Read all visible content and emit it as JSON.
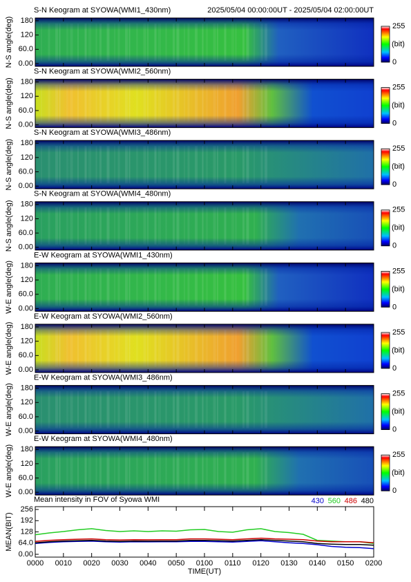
{
  "chart_data": [
    {
      "type": "keogram",
      "title": "S-N Keogram at SYOWA(WMI1_430nm)",
      "time_range": "2025/05/04 00:00:00UT - 2025/05/04 02:00:00UT",
      "ylabel": "N-S angle(deg)",
      "ylim": [
        0,
        180
      ],
      "yticks": [
        180,
        120,
        {
          "value": 60,
          "label": "60.0"
        },
        {
          "value": 0,
          "label": "0.00"
        }
      ],
      "colorbar_ticks": [
        255,
        0
      ],
      "colorbar_label": "(bit)"
    },
    {
      "type": "keogram",
      "title": "S-N Keogram at SYOWA(WMI2_560nm)",
      "ylabel": "N-S angle(deg)",
      "ylim": [
        0,
        180
      ],
      "yticks": [
        180,
        120,
        {
          "value": 60,
          "label": "60.0"
        },
        {
          "value": 0,
          "label": "0.00"
        }
      ],
      "colorbar_ticks": [
        255,
        0
      ],
      "colorbar_label": "(bit)"
    },
    {
      "type": "keogram",
      "title": "S-N Keogram at SYOWA(WMI3_486nm)",
      "ylabel": "N-S angle(deg)",
      "ylim": [
        0,
        180
      ],
      "yticks": [
        180,
        120,
        {
          "value": 60,
          "label": "60.0"
        },
        {
          "value": 0,
          "label": "0.00"
        }
      ],
      "colorbar_ticks": [
        255,
        0
      ],
      "colorbar_label": "(bit)"
    },
    {
      "type": "keogram",
      "title": "S-N Keogram at SYOWA(WMI4_480nm)",
      "ylabel": "N-S angle(deg)",
      "ylim": [
        0,
        180
      ],
      "yticks": [
        180,
        120,
        {
          "value": 60,
          "label": "60.0"
        },
        {
          "value": 0,
          "label": "0.00"
        }
      ],
      "colorbar_ticks": [
        255,
        0
      ],
      "colorbar_label": "(bit)"
    },
    {
      "type": "keogram",
      "title": "E-W Keogram at SYOWA(WMI1_430nm)",
      "ylabel": "W-E angle(deg)",
      "ylim": [
        0,
        180
      ],
      "yticks": [
        180,
        120,
        {
          "value": 60,
          "label": "60.0"
        },
        {
          "value": 0,
          "label": "0.00"
        }
      ],
      "colorbar_ticks": [
        255,
        0
      ],
      "colorbar_label": "(bit)"
    },
    {
      "type": "keogram",
      "title": "E-W Keogram at SYOWA(WMI2_560nm)",
      "ylabel": "W-E angle(deg)",
      "ylim": [
        0,
        180
      ],
      "yticks": [
        180,
        120,
        {
          "value": 60,
          "label": "60.0"
        },
        {
          "value": 0,
          "label": "0.00"
        }
      ],
      "colorbar_ticks": [
        255,
        0
      ],
      "colorbar_label": "(bit)"
    },
    {
      "type": "keogram",
      "title": "E-W Keogram at SYOWA(WMI3_486nm)",
      "ylabel": "W-E angle(deg)",
      "ylim": [
        0,
        180
      ],
      "yticks": [
        180,
        120,
        {
          "value": 60,
          "label": "60.0"
        },
        {
          "value": 0,
          "label": "0.00"
        }
      ],
      "colorbar_ticks": [
        255,
        0
      ],
      "colorbar_label": "(bit)"
    },
    {
      "type": "keogram",
      "title": "E-W Keogram at SYOWA(WMI4_480nm)",
      "ylabel": "W-E angle(deg)",
      "ylim": [
        0,
        180
      ],
      "yticks": [
        180,
        120,
        {
          "value": 60,
          "label": "60.0"
        },
        {
          "value": 0,
          "label": "0.00"
        }
      ],
      "colorbar_ticks": [
        255,
        0
      ],
      "colorbar_label": "(bit)"
    },
    {
      "type": "line",
      "title": "Mean intensity in FOV of Syowa WMI",
      "ylabel": "MEAN(BIT)",
      "xlabel": "TIME(UT)",
      "xlim": [
        0,
        120
      ],
      "ylim": [
        -16,
        272
      ],
      "xticks": [
        {
          "value": 0,
          "label": "0000"
        },
        {
          "value": 10,
          "label": "0010"
        },
        {
          "value": 20,
          "label": "0020"
        },
        {
          "value": 30,
          "label": "0030"
        },
        {
          "value": 40,
          "label": "0040"
        },
        {
          "value": 50,
          "label": "0050"
        },
        {
          "value": 60,
          "label": "0100"
        },
        {
          "value": 70,
          "label": "0110"
        },
        {
          "value": 80,
          "label": "0120"
        },
        {
          "value": 90,
          "label": "0130"
        },
        {
          "value": 100,
          "label": "0140"
        },
        {
          "value": 110,
          "label": "0150"
        },
        {
          "value": 120,
          "label": "0200"
        }
      ],
      "yticks": [
        256,
        192,
        128,
        {
          "value": 64,
          "label": "64.0"
        },
        {
          "value": 0,
          "label": "0.00"
        }
      ],
      "x": [
        0,
        5,
        10,
        15,
        20,
        25,
        30,
        35,
        40,
        45,
        50,
        55,
        60,
        65,
        70,
        75,
        80,
        85,
        90,
        95,
        100,
        105,
        110,
        115,
        120
      ],
      "series": [
        {
          "name": "430",
          "color": "#0000cc",
          "values": [
            62,
            68,
            72,
            74,
            75,
            72,
            70,
            72,
            71,
            72,
            72,
            74,
            74,
            72,
            70,
            74,
            78,
            72,
            66,
            62,
            55,
            45,
            40,
            38,
            32
          ]
        },
        {
          "name": "560",
          "color": "#22cc22",
          "values": [
            112,
            122,
            130,
            140,
            146,
            136,
            130,
            134,
            130,
            134,
            132,
            140,
            142,
            130,
            126,
            140,
            146,
            130,
            124,
            114,
            80,
            76,
            72,
            72,
            62
          ]
        },
        {
          "name": "486",
          "color": "#cc0000",
          "values": [
            74,
            80,
            84,
            86,
            88,
            84,
            82,
            84,
            83,
            84,
            84,
            88,
            88,
            86,
            84,
            88,
            92,
            88,
            86,
            84,
            76,
            72,
            72,
            72,
            66
          ]
        },
        {
          "name": "480",
          "color": "#000000",
          "values": [
            66,
            72,
            76,
            78,
            80,
            76,
            74,
            76,
            75,
            76,
            76,
            80,
            80,
            78,
            76,
            80,
            84,
            80,
            76,
            72,
            62,
            58,
            56,
            56,
            52
          ]
        }
      ]
    }
  ]
}
